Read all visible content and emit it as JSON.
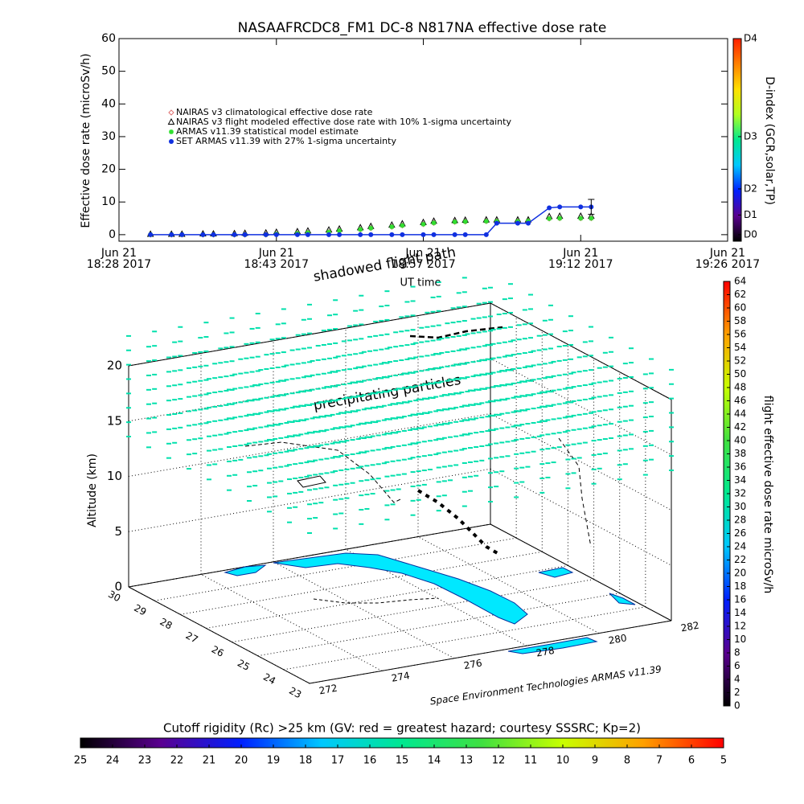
{
  "chart_data": [
    {
      "type": "line",
      "title": "NASAAFRCDC8_FM1 DC-8    N817NA effective dose rate",
      "ylabel": "Effective dose rate (microSv/h)",
      "xlabel": "UT time",
      "x": [
        "2017-06-21 18:31",
        "2017-06-21 18:33",
        "2017-06-21 18:34",
        "2017-06-21 18:36",
        "2017-06-21 18:37",
        "2017-06-21 18:39",
        "2017-06-21 18:40",
        "2017-06-21 18:42",
        "2017-06-21 18:43",
        "2017-06-21 18:45",
        "2017-06-21 18:46",
        "2017-06-21 18:48",
        "2017-06-21 18:49",
        "2017-06-21 18:51",
        "2017-06-21 18:52",
        "2017-06-21 18:54",
        "2017-06-21 18:55",
        "2017-06-21 18:57",
        "2017-06-21 18:58",
        "2017-06-21 19:00",
        "2017-06-21 19:01",
        "2017-06-21 19:03",
        "2017-06-21 19:04",
        "2017-06-21 19:06",
        "2017-06-21 19:07",
        "2017-06-21 19:09",
        "2017-06-21 19:10",
        "2017-06-21 19:12",
        "2017-06-21 19:13"
      ],
      "xlim": [
        "2017-06-21 18:28",
        "2017-06-21 19:26"
      ],
      "xticks": [
        {
          "value": "2017-06-21 18:28",
          "label": "Jun 21\n18:28 2017"
        },
        {
          "value": "2017-06-21 18:43",
          "label": "Jun 21\n18:43 2017"
        },
        {
          "value": "2017-06-21 18:57",
          "label": "Jun 21\n18:57 2017"
        },
        {
          "value": "2017-06-21 19:12",
          "label": "Jun 21\n19:12 2017"
        },
        {
          "value": "2017-06-21 19:26",
          "label": "Jun 21\n19:26 2017"
        }
      ],
      "ylim": [
        -2,
        60
      ],
      "yticks": [
        0,
        10,
        20,
        30,
        40,
        50,
        60
      ],
      "series": [
        {
          "name": "NAIRAS v3 climatological effective dose rate",
          "color": "#e07070",
          "marker": "diamond",
          "values": [
            0,
            0,
            0,
            0,
            0,
            0,
            0,
            0,
            0.2,
            0.4,
            0.6,
            0.8,
            1.2,
            1.6,
            2.0,
            2.4,
            2.8,
            3.2,
            3.6,
            3.9,
            4.0,
            4.1,
            4.1,
            4.1,
            4.2,
            4.9,
            5.0,
            5.0,
            5.0
          ]
        },
        {
          "name": "NAIRAS v3 flight modeled effective dose rate with 10% 1-sigma uncertainty",
          "color": "#000000",
          "marker": "triangle",
          "values": [
            0.1,
            0.1,
            0.1,
            0.2,
            0.2,
            0.3,
            0.4,
            0.5,
            0.7,
            0.9,
            1.1,
            1.4,
            1.7,
            2.1,
            2.5,
            2.9,
            3.3,
            3.7,
            4.1,
            4.3,
            4.4,
            4.5,
            4.5,
            4.5,
            4.5,
            5.5,
            5.6,
            5.6,
            5.6
          ]
        },
        {
          "name": "ARMAS v11.39 statistical model estimate",
          "color": "#30e030",
          "marker": "star",
          "values": [
            0,
            0,
            0,
            0,
            0,
            0,
            0,
            0,
            0.2,
            0.4,
            0.6,
            0.8,
            1.2,
            1.6,
            2.0,
            2.4,
            2.8,
            3.2,
            3.6,
            3.9,
            4.0,
            4.1,
            4.1,
            4.1,
            4.2,
            4.9,
            5.0,
            5.0,
            5.0
          ]
        },
        {
          "name": "SET ARMAS v11.39 with 27% 1-sigma uncertainty",
          "color": "#1030e0",
          "marker": "circle",
          "line": true,
          "values": [
            0,
            0,
            0,
            0,
            0,
            0,
            0,
            0,
            0,
            0,
            0,
            0,
            0,
            0,
            0,
            0,
            0,
            0,
            0,
            0,
            0,
            0,
            3.5,
            3.5,
            3.5,
            8.2,
            8.5,
            8.5,
            8.5
          ],
          "errors": [
            null,
            null,
            null,
            null,
            null,
            null,
            null,
            null,
            null,
            null,
            null,
            null,
            null,
            null,
            null,
            null,
            null,
            null,
            null,
            null,
            null,
            null,
            null,
            null,
            null,
            null,
            null,
            null,
            2.3
          ]
        }
      ],
      "colorbar": {
        "label": "D-index (GCR,solar,TP)",
        "lim": [
          -2,
          60
        ],
        "ticks": [
          {
            "value": 0,
            "label": "D0"
          },
          {
            "value": 6,
            "label": "D1"
          },
          {
            "value": 14,
            "label": "D2"
          },
          {
            "value": 30,
            "label": "D3"
          },
          {
            "value": 60,
            "label": "D4"
          }
        ],
        "colors": [
          "#000000",
          "#5a0090",
          "#0020ff",
          "#00c8ff",
          "#00e890",
          "#b0ff20",
          "#ffe000",
          "#ff8000",
          "#ff2000"
        ]
      }
    },
    {
      "type": "scatter3d",
      "annotations": [
        "shadowed flight path",
        "precipitating particles"
      ],
      "credit": "Space Environment Technologies ARMAS v11.39",
      "zlabel": "Altitude (km)",
      "xlim": [
        272,
        282
      ],
      "xticks": [
        272,
        274,
        276,
        278,
        280,
        282
      ],
      "ylim": [
        23,
        30
      ],
      "yticks": [
        23,
        24,
        25,
        26,
        27,
        28,
        29,
        30
      ],
      "zlim": [
        0,
        20
      ],
      "zticks": [
        0,
        5,
        10,
        15,
        20
      ],
      "particle_dose_rate": 30,
      "colorbar": {
        "label": "flight effective dose rate microSv/h",
        "lim": [
          0,
          64
        ],
        "ticks": [
          0,
          2,
          4,
          6,
          8,
          10,
          12,
          14,
          16,
          18,
          20,
          22,
          24,
          26,
          28,
          30,
          32,
          34,
          36,
          38,
          40,
          42,
          44,
          46,
          48,
          50,
          52,
          54,
          56,
          58,
          60,
          62,
          64
        ],
        "colors": [
          "#000000",
          "#5a0090",
          "#0020ff",
          "#00c8ff",
          "#00e890",
          "#40e040",
          "#c8ff00",
          "#ffa000",
          "#ff0000"
        ]
      }
    },
    {
      "type": "colorbar",
      "title": "Cutoff rigidity (Rc) >25 km (GV: red = greatest hazard; courtesy SSSRC; Kp=2)",
      "lim": [
        25,
        5
      ],
      "ticks": [
        25,
        24,
        23,
        22,
        21,
        20,
        19,
        18,
        17,
        16,
        15,
        14,
        13,
        12,
        11,
        10,
        9,
        8,
        7,
        6,
        5
      ],
      "colors": [
        "#000000",
        "#5a0090",
        "#0020ff",
        "#00c8ff",
        "#00e890",
        "#40e040",
        "#c8ff00",
        "#ffa000",
        "#ff0000"
      ]
    }
  ]
}
